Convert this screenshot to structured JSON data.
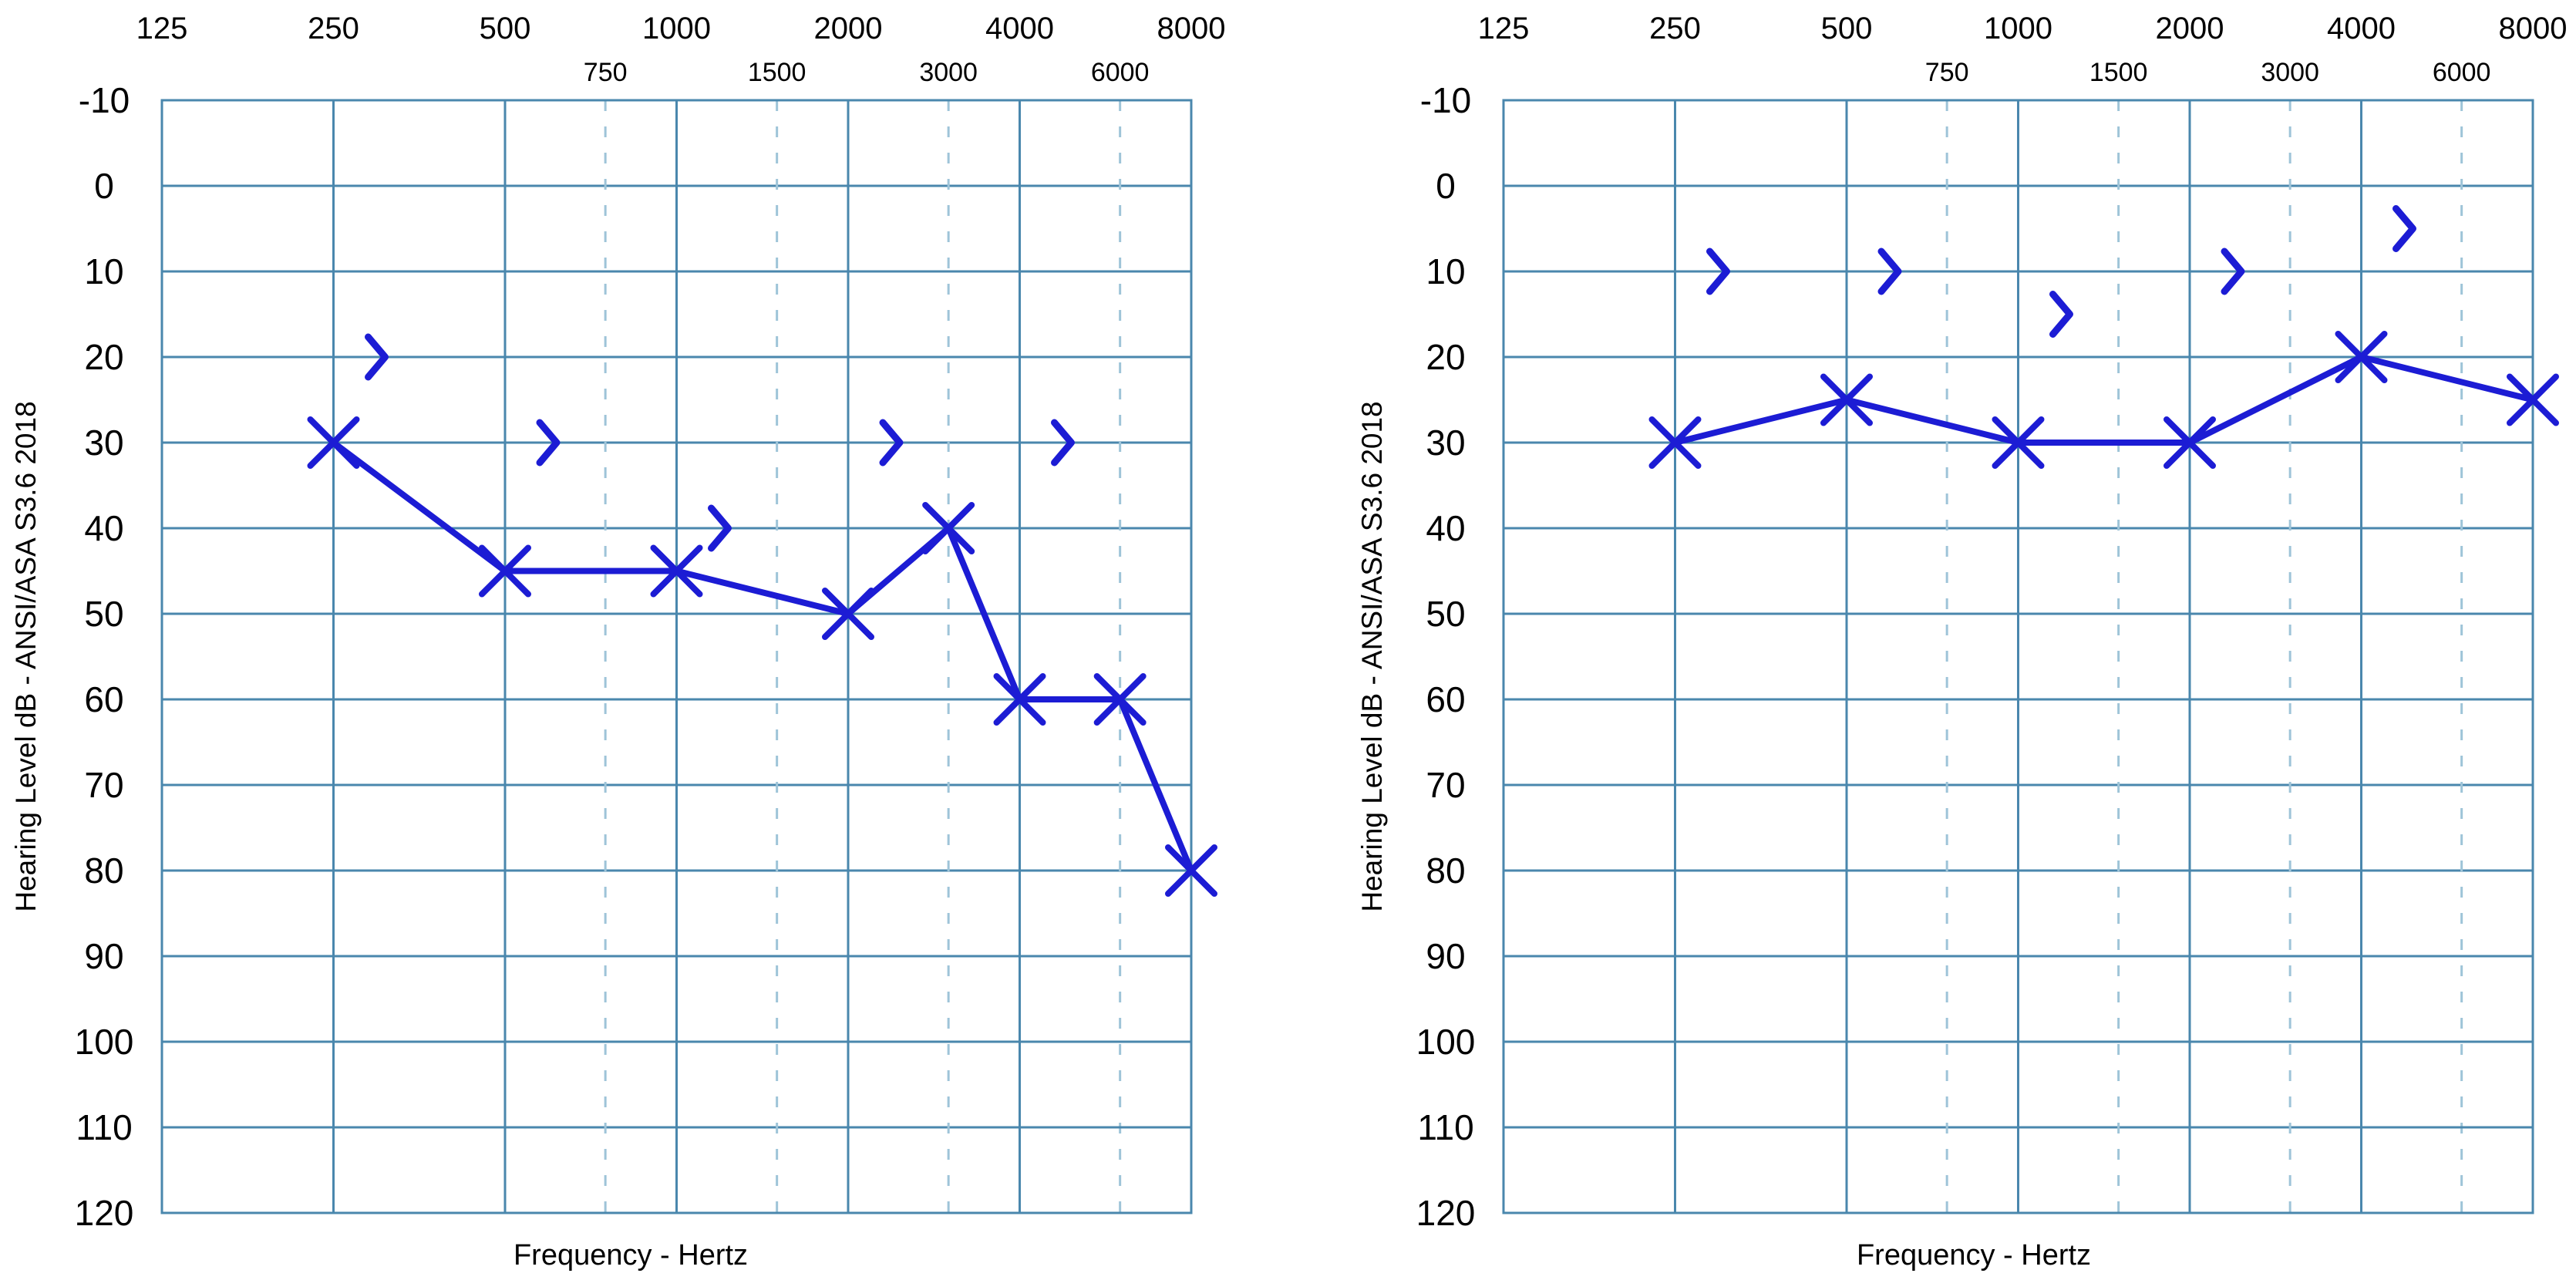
{
  "colors": {
    "grid": "#4a87ad",
    "grid_dashed": "#9ec4d8",
    "marker": "#1c1cd4",
    "text": "#000000"
  },
  "chart_data": [
    {
      "type": "line",
      "ylabel": "Hearing Level dB - ANSI/ASA S3.6 2018",
      "xlabel": "Frequency - Hertz",
      "x_scale": "log2",
      "x_ticks_major": [
        125,
        250,
        500,
        1000,
        2000,
        4000,
        8000
      ],
      "x_ticks_minor": [
        750,
        1500,
        3000,
        6000
      ],
      "y_ticks": [
        -10,
        0,
        10,
        20,
        30,
        40,
        50,
        60,
        70,
        80,
        90,
        100,
        110,
        120
      ],
      "ylim": [
        -10,
        120
      ],
      "y_inverted": true,
      "grid": true,
      "series": [
        {
          "marker": "x",
          "connected": true,
          "points": [
            {
              "x": 250,
              "y": 30
            },
            {
              "x": 500,
              "y": 45
            },
            {
              "x": 1000,
              "y": 45
            },
            {
              "x": 2000,
              "y": 50
            },
            {
              "x": 3000,
              "y": 40
            },
            {
              "x": 4000,
              "y": 60
            },
            {
              "x": 6000,
              "y": 60
            },
            {
              "x": 8000,
              "y": 80
            }
          ]
        },
        {
          "marker": ">",
          "connected": false,
          "points": [
            {
              "x": 250,
              "y": 20
            },
            {
              "x": 500,
              "y": 30
            },
            {
              "x": 1000,
              "y": 40
            },
            {
              "x": 2000,
              "y": 30
            },
            {
              "x": 4000,
              "y": 30
            }
          ]
        }
      ]
    },
    {
      "type": "line",
      "ylabel": "Hearing Level dB - ANSI/ASA S3.6 2018",
      "xlabel": "Frequency - Hertz",
      "x_scale": "log2",
      "x_ticks_major": [
        125,
        250,
        500,
        1000,
        2000,
        4000,
        8000
      ],
      "x_ticks_minor": [
        750,
        1500,
        3000,
        6000
      ],
      "y_ticks": [
        -10,
        0,
        10,
        20,
        30,
        40,
        50,
        60,
        70,
        80,
        90,
        100,
        110,
        120
      ],
      "ylim": [
        -10,
        120
      ],
      "y_inverted": true,
      "grid": true,
      "series": [
        {
          "marker": "x",
          "connected": true,
          "points": [
            {
              "x": 250,
              "y": 30
            },
            {
              "x": 500,
              "y": 25
            },
            {
              "x": 1000,
              "y": 30
            },
            {
              "x": 2000,
              "y": 30
            },
            {
              "x": 4000,
              "y": 20
            },
            {
              "x": 8000,
              "y": 25
            }
          ]
        },
        {
          "marker": ">",
          "connected": false,
          "points": [
            {
              "x": 250,
              "y": 10
            },
            {
              "x": 500,
              "y": 10
            },
            {
              "x": 1000,
              "y": 15
            },
            {
              "x": 2000,
              "y": 10
            },
            {
              "x": 4000,
              "y": 5
            }
          ]
        }
      ]
    }
  ]
}
